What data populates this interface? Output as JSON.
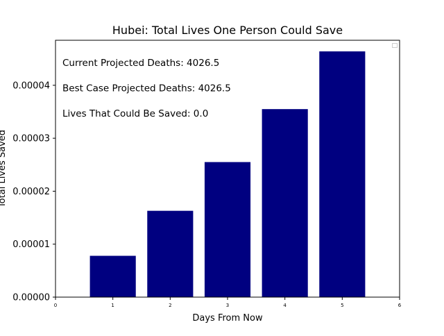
{
  "chart_data": {
    "type": "bar",
    "title": "Hubei: Total Lives One Person Could Save",
    "xlabel": "Days From Now",
    "ylabel": "Total Lives Saved",
    "categories": [
      1,
      2,
      3,
      4,
      5
    ],
    "values": [
      7.8e-06,
      1.63e-05,
      2.55e-05,
      3.55e-05,
      4.64e-05
    ],
    "bar_width": 0.8,
    "xlim": [
      0,
      6
    ],
    "ylim": [
      0,
      4.85e-05
    ],
    "xticks": [
      "0",
      "1",
      "2",
      "3",
      "4",
      "5",
      "6"
    ],
    "yticks": [
      {
        "value": 0,
        "label": "0.00000"
      },
      {
        "value": 1e-05,
        "label": "0.00001"
      },
      {
        "value": 2e-05,
        "label": "0.00002"
      },
      {
        "value": 3e-05,
        "label": "0.00003"
      },
      {
        "value": 4e-05,
        "label": "0.00004"
      }
    ],
    "bar_color": "#000080",
    "grid": false,
    "legend": "top-right, empty",
    "annotations": [
      "Current Projected Deaths: 4026.5",
      "Best Case Projected Deaths: 4026.5",
      "Lives That Could Be Saved: 0.0"
    ]
  }
}
